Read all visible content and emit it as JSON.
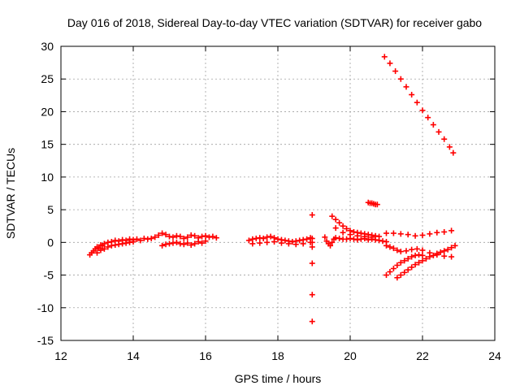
{
  "chart_data": {
    "type": "scatter",
    "title": "Day 016 of 2018, Sidereal Day-to-day VTEC variation (SDTVAR) for receiver gabo",
    "xlabel": "GPS time / hours",
    "ylabel": "SDTVAR / TECUs",
    "xlim": [
      12,
      24
    ],
    "ylim": [
      -15,
      30
    ],
    "xticks": [
      "12",
      "14",
      "16",
      "18",
      "20",
      "22",
      "24"
    ],
    "yticks": [
      "-15",
      "-10",
      "-5",
      "0",
      "5",
      "10",
      "15",
      "20",
      "25",
      "30"
    ],
    "grid": true,
    "marker": "plus",
    "color": "#ff0000",
    "series": [
      {
        "points": [
          [
            12.8,
            -1.9
          ],
          [
            12.85,
            -1.6
          ],
          [
            12.9,
            -1.3
          ],
          [
            12.95,
            -1.0
          ],
          [
            13.0,
            -0.7
          ],
          [
            13.05,
            -0.9
          ],
          [
            13.1,
            -0.4
          ],
          [
            13.15,
            -0.5
          ],
          [
            13.2,
            -0.2
          ],
          [
            13.3,
            0.0
          ],
          [
            13.4,
            0.1
          ],
          [
            13.5,
            0.3
          ],
          [
            13.6,
            0.2
          ],
          [
            13.7,
            0.4
          ],
          [
            13.8,
            0.3
          ],
          [
            13.9,
            0.5
          ],
          [
            14.0,
            0.4
          ],
          [
            14.1,
            0.5
          ],
          [
            14.2,
            0.3
          ],
          [
            13.0,
            -1.6
          ],
          [
            13.1,
            -1.2
          ],
          [
            13.2,
            -1.0
          ],
          [
            13.3,
            -0.7
          ],
          [
            13.4,
            -0.5
          ],
          [
            13.5,
            -0.4
          ],
          [
            13.6,
            -0.3
          ],
          [
            13.7,
            -0.2
          ],
          [
            13.8,
            -0.1
          ],
          [
            13.9,
            0.0
          ],
          [
            14.0,
            0.1
          ]
        ]
      },
      {
        "points": [
          [
            14.3,
            0.6
          ],
          [
            14.4,
            0.5
          ],
          [
            14.5,
            0.6
          ],
          [
            14.6,
            0.8
          ],
          [
            14.7,
            1.1
          ],
          [
            14.8,
            1.4
          ],
          [
            14.9,
            1.2
          ],
          [
            15.0,
            0.9
          ],
          [
            15.1,
            0.8
          ],
          [
            15.2,
            1.0
          ],
          [
            15.3,
            0.9
          ],
          [
            15.4,
            0.6
          ],
          [
            15.5,
            0.8
          ],
          [
            15.6,
            1.1
          ],
          [
            15.7,
            1.0
          ],
          [
            15.8,
            0.7
          ],
          [
            15.9,
            0.9
          ],
          [
            16.0,
            1.0
          ],
          [
            16.1,
            0.8
          ],
          [
            16.2,
            0.9
          ],
          [
            16.3,
            0.7
          ],
          [
            14.8,
            -0.5
          ],
          [
            14.9,
            -0.3
          ],
          [
            15.0,
            -0.2
          ],
          [
            15.1,
            -0.1
          ],
          [
            15.2,
            0.0
          ],
          [
            15.3,
            -0.2
          ],
          [
            15.4,
            -0.3
          ],
          [
            15.5,
            -0.1
          ],
          [
            15.6,
            -0.4
          ],
          [
            15.7,
            -0.2
          ],
          [
            15.8,
            0.1
          ],
          [
            15.9,
            -0.1
          ],
          [
            16.0,
            0.2
          ]
        ]
      },
      {
        "points": [
          [
            17.2,
            0.3
          ],
          [
            17.3,
            0.5
          ],
          [
            17.4,
            0.6
          ],
          [
            17.5,
            0.7
          ],
          [
            17.6,
            0.6
          ],
          [
            17.7,
            0.8
          ],
          [
            17.8,
            0.9
          ],
          [
            17.9,
            0.7
          ],
          [
            18.0,
            0.5
          ],
          [
            18.1,
            0.4
          ],
          [
            18.2,
            0.3
          ],
          [
            18.3,
            0.2
          ],
          [
            18.4,
            0.1
          ],
          [
            18.5,
            0.2
          ],
          [
            18.6,
            0.3
          ],
          [
            18.7,
            0.4
          ],
          [
            18.8,
            0.5
          ],
          [
            18.9,
            0.7
          ],
          [
            17.3,
            -0.2
          ],
          [
            17.5,
            -0.1
          ],
          [
            17.7,
            0.0
          ],
          [
            17.9,
            0.1
          ],
          [
            18.1,
            -0.1
          ],
          [
            18.3,
            -0.2
          ],
          [
            18.5,
            -0.3
          ],
          [
            18.7,
            -0.2
          ],
          [
            18.9,
            0.0
          ]
        ]
      },
      {
        "points": [
          [
            18.95,
            4.2
          ],
          [
            18.95,
            0.6
          ],
          [
            18.95,
            0.0
          ],
          [
            18.95,
            -0.7
          ],
          [
            18.95,
            -3.2
          ],
          [
            18.95,
            -8.0
          ],
          [
            18.95,
            -12.1
          ]
        ]
      },
      {
        "points": [
          [
            19.3,
            0.8
          ],
          [
            19.35,
            0.2
          ],
          [
            19.4,
            -0.2
          ],
          [
            19.45,
            -0.5
          ],
          [
            19.5,
            0.0
          ],
          [
            19.55,
            0.5
          ],
          [
            19.6,
            0.7
          ],
          [
            19.7,
            0.6
          ],
          [
            19.8,
            0.5
          ],
          [
            19.9,
            0.5
          ],
          [
            20.0,
            0.6
          ],
          [
            20.1,
            0.5
          ],
          [
            20.2,
            0.4
          ],
          [
            20.3,
            0.5
          ],
          [
            20.4,
            0.6
          ],
          [
            20.5,
            0.4
          ],
          [
            20.6,
            0.5
          ],
          [
            20.7,
            0.4
          ],
          [
            20.8,
            0.3
          ],
          [
            20.9,
            0.2
          ],
          [
            21.0,
            0.1
          ]
        ]
      },
      {
        "points": [
          [
            19.5,
            4.0
          ],
          [
            19.6,
            3.5
          ],
          [
            19.7,
            3.0
          ],
          [
            19.8,
            2.5
          ],
          [
            19.9,
            2.1
          ],
          [
            20.0,
            1.8
          ],
          [
            20.1,
            1.6
          ],
          [
            20.2,
            1.5
          ],
          [
            20.3,
            1.4
          ],
          [
            20.4,
            1.3
          ],
          [
            20.5,
            1.2
          ],
          [
            20.6,
            1.1
          ],
          [
            20.7,
            1.0
          ],
          [
            20.8,
            0.9
          ],
          [
            19.6,
            2.2
          ],
          [
            19.8,
            1.5
          ],
          [
            20.0,
            1.2
          ],
          [
            20.2,
            1.0
          ],
          [
            20.4,
            0.9
          ],
          [
            20.6,
            0.8
          ]
        ]
      },
      {
        "points": [
          [
            20.5,
            6.1
          ],
          [
            20.55,
            6.0
          ],
          [
            20.6,
            6.0
          ],
          [
            20.65,
            5.9
          ],
          [
            20.7,
            5.8
          ],
          [
            20.75,
            5.8
          ]
        ]
      },
      {
        "points": [
          [
            20.95,
            28.4
          ],
          [
            21.1,
            27.4
          ],
          [
            21.25,
            26.2
          ],
          [
            21.4,
            25.0
          ],
          [
            21.55,
            23.8
          ],
          [
            21.7,
            22.6
          ],
          [
            21.85,
            21.4
          ],
          [
            22.0,
            20.2
          ],
          [
            22.15,
            19.1
          ],
          [
            22.3,
            18.0
          ],
          [
            22.45,
            16.9
          ],
          [
            22.6,
            15.8
          ],
          [
            22.75,
            14.6
          ],
          [
            22.85,
            13.7
          ]
        ]
      },
      {
        "points": [
          [
            21.0,
            1.4
          ],
          [
            21.2,
            1.4
          ],
          [
            21.4,
            1.3
          ],
          [
            21.6,
            1.2
          ],
          [
            21.8,
            1.0
          ],
          [
            22.0,
            1.1
          ],
          [
            22.2,
            1.3
          ],
          [
            22.4,
            1.5
          ],
          [
            22.6,
            1.6
          ],
          [
            22.8,
            1.8
          ]
        ]
      },
      {
        "points": [
          [
            21.0,
            -0.5
          ],
          [
            21.1,
            -0.7
          ],
          [
            21.2,
            -0.9
          ],
          [
            21.3,
            -1.2
          ],
          [
            21.4,
            -1.4
          ],
          [
            21.55,
            -1.3
          ],
          [
            21.7,
            -1.1
          ],
          [
            21.85,
            -1.0
          ],
          [
            22.0,
            -1.2
          ],
          [
            22.2,
            -1.6
          ],
          [
            22.4,
            -1.9
          ],
          [
            22.6,
            -2.1
          ],
          [
            22.8,
            -2.2
          ]
        ]
      },
      {
        "points": [
          [
            21.0,
            -5.0
          ],
          [
            21.1,
            -4.5
          ],
          [
            21.2,
            -4.0
          ],
          [
            21.3,
            -3.5
          ],
          [
            21.4,
            -3.1
          ],
          [
            21.5,
            -2.8
          ],
          [
            21.6,
            -2.5
          ],
          [
            21.7,
            -2.2
          ],
          [
            21.8,
            -2.0
          ],
          [
            21.9,
            -1.9
          ],
          [
            22.0,
            -2.0
          ]
        ]
      },
      {
        "points": [
          [
            21.3,
            -5.4
          ],
          [
            21.4,
            -5.0
          ],
          [
            21.5,
            -4.6
          ],
          [
            21.6,
            -4.2
          ],
          [
            21.7,
            -3.8
          ],
          [
            21.8,
            -3.4
          ],
          [
            21.9,
            -3.1
          ],
          [
            22.0,
            -2.8
          ],
          [
            22.1,
            -2.5
          ],
          [
            22.2,
            -2.2
          ],
          [
            22.3,
            -2.0
          ],
          [
            22.4,
            -1.7
          ],
          [
            22.5,
            -1.5
          ],
          [
            22.6,
            -1.3
          ],
          [
            22.7,
            -1.1
          ],
          [
            22.8,
            -0.8
          ],
          [
            22.9,
            -0.5
          ]
        ]
      }
    ]
  }
}
